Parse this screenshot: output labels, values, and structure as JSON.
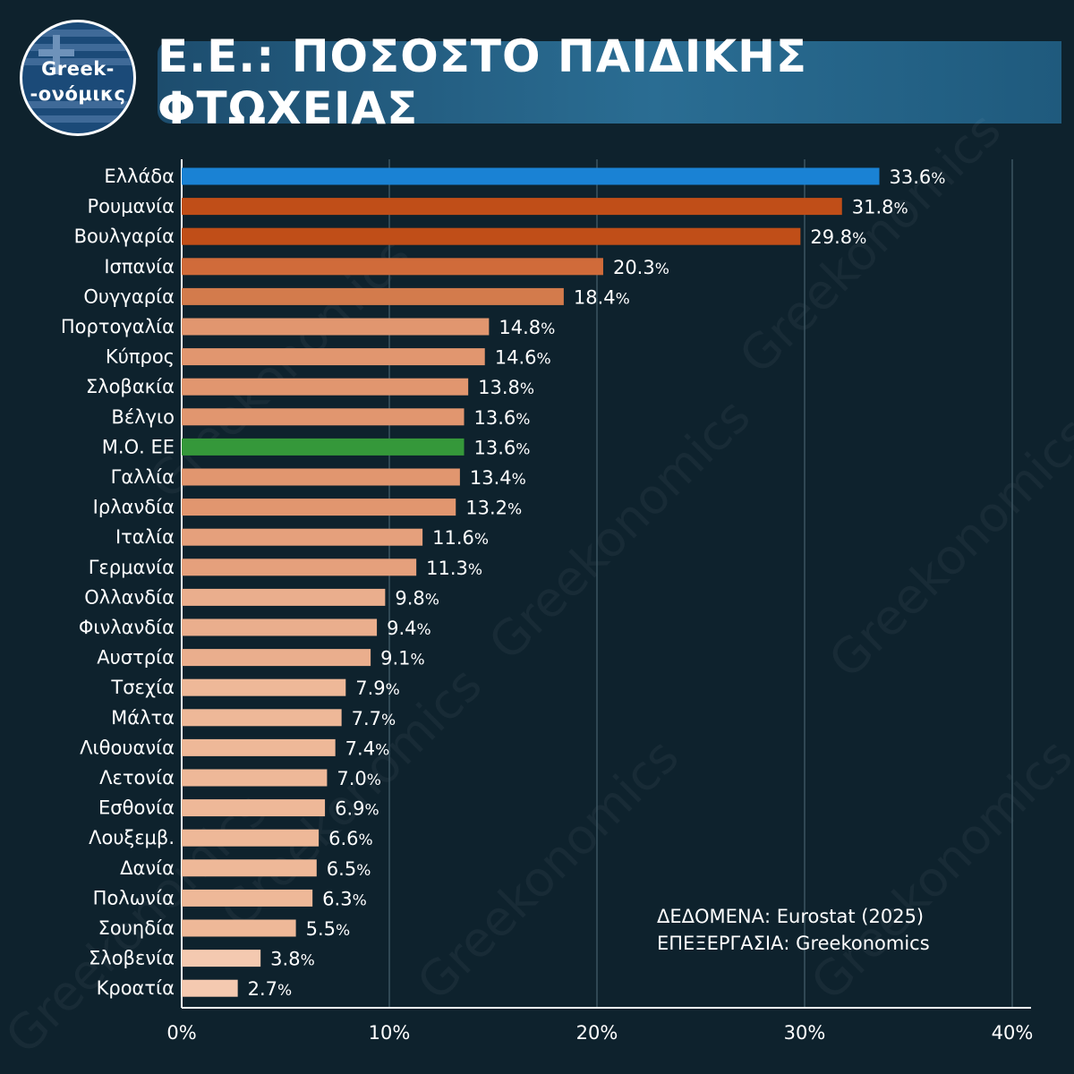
{
  "logo": {
    "line1": "Greek-",
    "line2": "-ονόμικς"
  },
  "title": "Ε.Ε.: ΠΟΣΟΣΤΟ ΠΑΙΔΙΚΗΣ ΦΤΩΧΕΙΑΣ",
  "notes": {
    "data_source": "ΔΕΔΟΜΕΝΑ: Eurostat (2025)",
    "processing": "ΕΠΕΞΕΡΓΑΣΙΑ: Greekonomics"
  },
  "watermark_text": "Greekonomics",
  "chart_data": {
    "type": "bar",
    "orientation": "horizontal",
    "categories": [
      "Ελλάδα",
      "Ρουμανία",
      "Βουλγαρία",
      "Ισπανία",
      "Ουγγαρία",
      "Πορτογαλία",
      "Κύπρος",
      "Σλοβακία",
      "Βέλγιο",
      "Μ.Ο. ΕΕ",
      "Γαλλία",
      "Ιρλανδία",
      "Ιταλία",
      "Γερμανία",
      "Ολλανδία",
      "Φινλανδία",
      "Αυστρία",
      "Τσεχία",
      "Μάλτα",
      "Λιθουανία",
      "Λετονία",
      "Εσθονία",
      "Λουξεμβ.",
      "Δανία",
      "Πολωνία",
      "Σουηδία",
      "Σλοβενία",
      "Κροατία"
    ],
    "values": [
      33.6,
      31.8,
      29.8,
      20.3,
      18.4,
      14.8,
      14.6,
      13.8,
      13.6,
      13.6,
      13.4,
      13.2,
      11.6,
      11.3,
      9.8,
      9.4,
      9.1,
      7.9,
      7.7,
      7.4,
      7.0,
      6.9,
      6.6,
      6.5,
      6.3,
      5.5,
      3.8,
      2.7
    ],
    "value_labels": [
      "33.6",
      "31.8",
      "29.8",
      "20.3",
      "18.4",
      "14.8",
      "14.6",
      "13.8",
      "13.6",
      "13.6",
      "13.4",
      "13.2",
      "11.6",
      "11.3",
      "9.8",
      "9.4",
      "9.1",
      "7.9",
      "7.7",
      "7.4",
      "7.0",
      "6.9",
      "6.6",
      "6.5",
      "6.3",
      "5.5",
      "3.8",
      "2.7"
    ],
    "value_suffix": "%",
    "colors": [
      "#1a82d4",
      "#c04e18",
      "#c04e18",
      "#d06b3a",
      "#d37b4c",
      "#e1966f",
      "#e1966f",
      "#e1966f",
      "#e1966f",
      "#35983a",
      "#e1966f",
      "#e1966f",
      "#e5a07c",
      "#e5a07c",
      "#eaae8d",
      "#eaae8d",
      "#eaae8d",
      "#eeb898",
      "#eeb898",
      "#eeb898",
      "#eeb898",
      "#eeb898",
      "#eeb898",
      "#eeb898",
      "#eeb898",
      "#eeb898",
      "#f4c9b0",
      "#f4c9b0"
    ],
    "xlim": [
      0,
      40
    ],
    "xticks": [
      0,
      10,
      20,
      30,
      40
    ],
    "xtick_labels": [
      "0%",
      "10%",
      "20%",
      "30%",
      "40%"
    ],
    "grid": true,
    "xlabel": "",
    "ylabel": ""
  }
}
